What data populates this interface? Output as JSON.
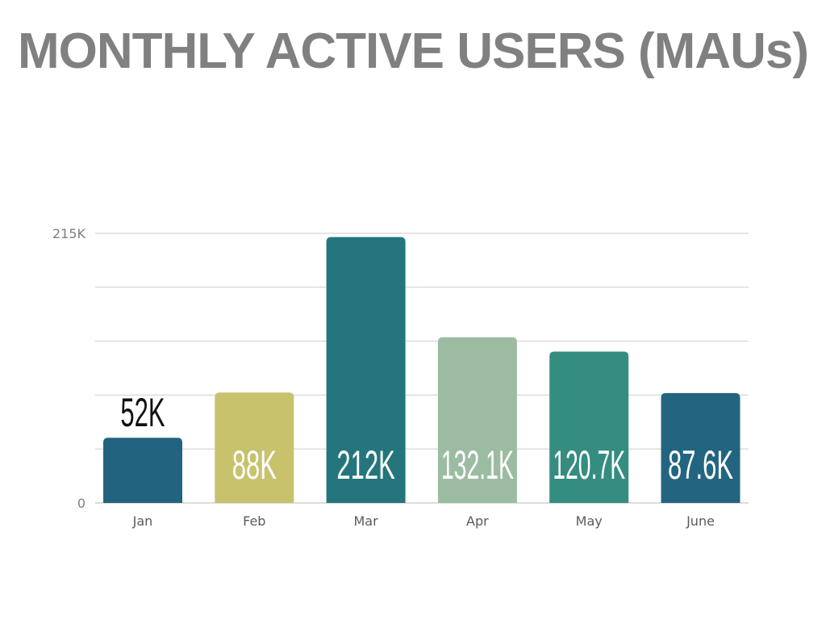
{
  "chart_data": {
    "type": "bar",
    "title": "MONTHLY ACTIVE USERS (MAUs)",
    "categories": [
      "Jan",
      "Feb",
      "Mar",
      "Apr",
      "May",
      "June"
    ],
    "values": [
      52,
      88,
      212,
      132.1,
      120.7,
      87.6
    ],
    "data_labels": [
      "52K",
      "88K",
      "212K",
      "132.1K",
      "120.7K",
      "87.6K"
    ],
    "bar_colors": [
      "#22647f",
      "#c8c26d",
      "#24767c",
      "#9cbca2",
      "#348d80",
      "#236581"
    ],
    "label_colors": [
      "#111111",
      "#ffffff",
      "#ffffff",
      "#ffffff",
      "#ffffff",
      "#ffffff"
    ],
    "label_position": [
      "outside",
      "inside",
      "inside",
      "inside",
      "inside",
      "inside"
    ],
    "ylim": [
      0,
      215
    ],
    "ytick_labels": [
      "0",
      "215K"
    ],
    "gridlines": [
      0,
      43,
      86,
      129,
      172,
      215
    ],
    "grid": true,
    "xlabel": "",
    "ylabel": "",
    "legend": "none"
  }
}
